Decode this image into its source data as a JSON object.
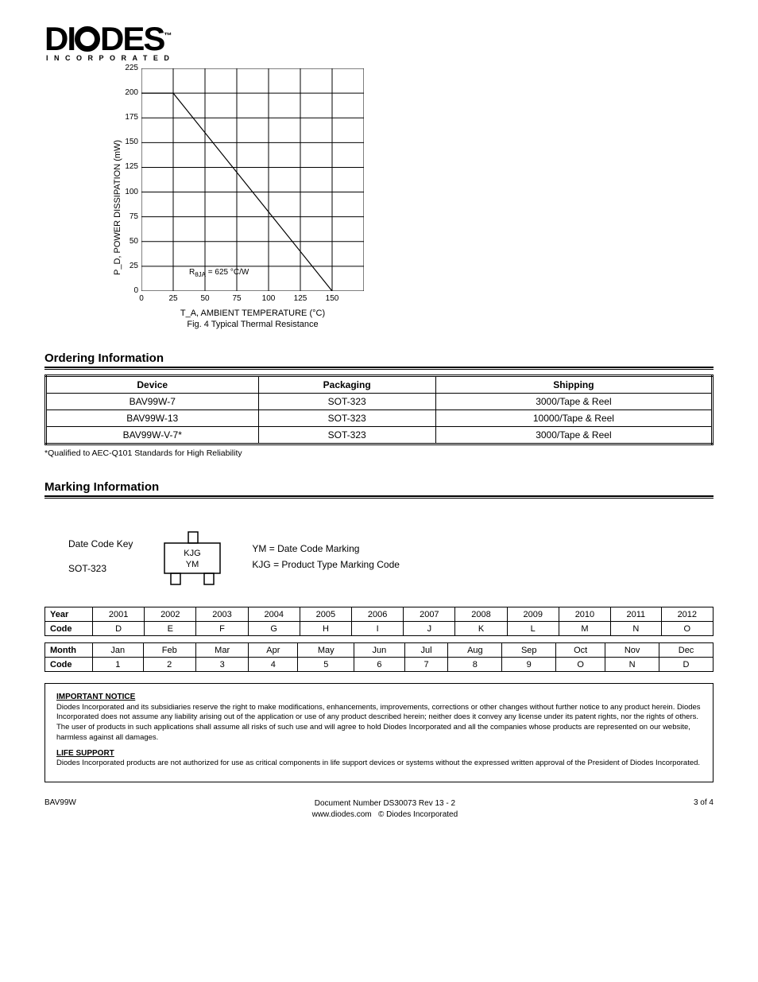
{
  "logo": {
    "text_main": "DI",
    "text_rest": "DES",
    "tm": "™",
    "sub": "INCORPORATED"
  },
  "chart": {
    "type": "line",
    "xlabel": "T_A, AMBIENT TEMPERATURE (°C)",
    "ylabel": "P_D, POWER DISSIPATION (mW)",
    "caption": "Fig. 4 Typical Thermal Resistance",
    "note_html": "R<sub>θJA</sub> = 625 °C/W",
    "x_ticks": [
      0,
      25,
      50,
      75,
      100,
      125,
      150
    ],
    "y_ticks": [
      0,
      25,
      50,
      75,
      100,
      125,
      150,
      175,
      200,
      225
    ],
    "xlim": [
      0,
      175
    ],
    "ylim": [
      0,
      225
    ],
    "grid_cols": 7,
    "grid_rows": 9,
    "grid_color": "#000000",
    "line_color": "#000000",
    "line_width": 1.2,
    "background_color": "#ffffff",
    "series": [
      {
        "points": [
          [
            0,
            200
          ],
          [
            25,
            200
          ],
          [
            150,
            0
          ]
        ]
      }
    ],
    "label_fontsize": 11,
    "tick_fontsize": 10
  },
  "ordering": {
    "title": "Ordering Information",
    "headers": [
      "Device",
      "Packaging",
      "Shipping"
    ],
    "rows": [
      [
        "BAV99W-7",
        "SOT-323",
        "3000/Tape & Reel"
      ],
      [
        "BAV99W-13",
        "SOT-323",
        "10000/Tape & Reel"
      ],
      [
        "BAV99W-V-7*",
        "SOT-323",
        "3000/Tape & Reel"
      ]
    ],
    "note": "*Qualified to AEC-Q101 Standards for High Reliability"
  },
  "marking": {
    "title": "Marking Information",
    "label1": "Date Code Key",
    "label2": "SOT-323",
    "pkg_line1": "KJG",
    "pkg_line2": "YM",
    "ym_text": "YM = Date Code Marking",
    "kjg_text": "KJG = Product Type Marking Code"
  },
  "datecode": {
    "row1_hdr": "Year",
    "row1": [
      "2001",
      "2002",
      "2003",
      "2004",
      "2005",
      "2006",
      "2007",
      "2008",
      "2009",
      "2010",
      "2011",
      "2012"
    ],
    "row2_hdr": "Code",
    "row2": [
      "D",
      "E",
      "F",
      "G",
      "H",
      "I",
      "J",
      "K",
      "L",
      "M",
      "N",
      "O"
    ],
    "row3_hdr": "Month",
    "row3": [
      "Jan",
      "Feb",
      "Mar",
      "Apr",
      "May",
      "Jun",
      "Jul",
      "Aug",
      "Sep",
      "Oct",
      "Nov",
      "Dec"
    ],
    "row4_hdr": "Code",
    "row4": [
      "1",
      "2",
      "3",
      "4",
      "5",
      "6",
      "7",
      "8",
      "9",
      "O",
      "N",
      "D"
    ]
  },
  "legal": {
    "title": "IMPORTANT NOTICE",
    "p1": "Diodes Incorporated and its subsidiaries reserve the right to make modifications, enhancements, improvements, corrections or other changes without further notice to any product herein. Diodes Incorporated does not assume any liability arising out of the application or use of any product described herein; neither does it convey any license under its patent rights, nor the rights of others. The user of products in such applications shall assume all risks of such use and will agree to hold Diodes Incorporated and all the companies whose products are represented on our website, harmless against all damages.",
    "life_title": "LIFE SUPPORT",
    "p2": "Diodes Incorporated products are not authorized for use as critical components in life support devices or systems without the expressed written approval of the President of Diodes Incorporated."
  },
  "footer": {
    "left": "BAV99W",
    "doc_id": "Document Number DS30073 Rev 13 - 2",
    "site": "www.diodes.com",
    "copyright": "© Diodes Incorporated",
    "page": "3 of 4"
  }
}
